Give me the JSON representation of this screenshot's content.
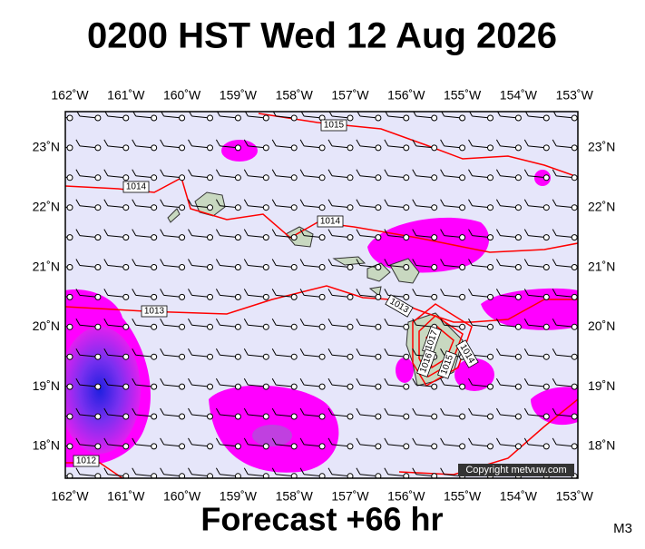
{
  "title": "0200 HST Wed 12 Aug 2026",
  "longitude_labels": [
    "162˚W",
    "161˚W",
    "160˚W",
    "159˚W",
    "158˚W",
    "157˚W",
    "156˚W",
    "155˚W",
    "154˚W",
    "153˚W"
  ],
  "latitude_labels": [
    "23˚N",
    "22˚N",
    "21˚N",
    "20˚N",
    "19˚N",
    "18˚N"
  ],
  "isobar_labels": [
    "1015",
    "1014",
    "1014",
    "1013",
    "1013",
    "1012",
    "1017",
    "1016",
    "1015",
    "1014"
  ],
  "copyright": "Copyright metvuw.com",
  "forecast": "Forecast +66 hr",
  "model": "M3"
}
